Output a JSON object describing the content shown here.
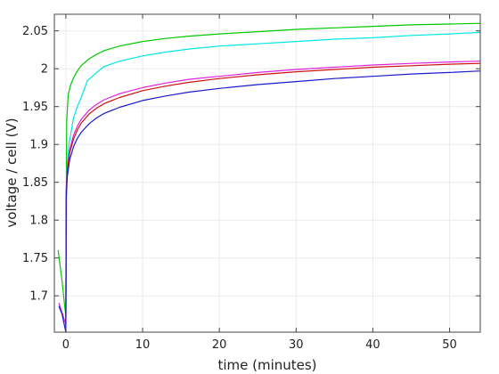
{
  "chart_data": {
    "type": "line",
    "title": "",
    "xlabel": "time (minutes)",
    "ylabel": "voltage / cell (V)",
    "xlim": [
      -1.5,
      54
    ],
    "ylim": [
      1.652,
      2.072
    ],
    "grid": true,
    "x_ticks": [
      0,
      10,
      20,
      30,
      40,
      50
    ],
    "x_tick_labels": [
      "0",
      "10",
      "20",
      "30",
      "40",
      "50"
    ],
    "y_ticks": [
      1.7,
      1.75,
      1.8,
      1.85,
      1.9,
      1.95,
      2.0,
      2.05
    ],
    "y_tick_labels": [
      "1.7",
      "1.75",
      "1.8",
      "1.85",
      "1.9",
      "1.95",
      "2",
      "2.05"
    ],
    "series": [
      {
        "color": "#00c800",
        "x": [
          -1.0,
          -0.5,
          0.0,
          0.1,
          0.3,
          0.6,
          1,
          1.5,
          2,
          3,
          4,
          5,
          7,
          10,
          13,
          16,
          20,
          25,
          30,
          35,
          40,
          45,
          50,
          54
        ],
        "y": [
          1.76,
          1.72,
          1.672,
          1.93,
          1.965,
          1.978,
          1.988,
          1.997,
          2.004,
          2.013,
          2.019,
          2.024,
          2.03,
          2.036,
          2.04,
          2.043,
          2.046,
          2.049,
          2.052,
          2.054,
          2.056,
          2.058,
          2.059,
          2.06
        ]
      },
      {
        "color": "#00e5e5",
        "x": [
          0.0,
          0.1,
          0.4,
          1,
          1.5,
          2,
          2.8,
          4,
          5,
          7,
          10,
          13,
          16,
          20,
          25,
          30,
          35,
          40,
          45,
          50,
          54
        ],
        "y": [
          1.668,
          1.86,
          1.9,
          1.935,
          1.95,
          1.962,
          1.984,
          1.995,
          2.003,
          2.01,
          2.017,
          2.022,
          2.026,
          2.03,
          2.033,
          2.036,
          2.039,
          2.041,
          2.044,
          2.046,
          2.048
        ]
      },
      {
        "color": "#dd22dd",
        "x": [
          -0.9,
          -0.5,
          0.0,
          0.05,
          0.2,
          0.5,
          1,
          1.5,
          2,
          3,
          4,
          5,
          7,
          10,
          13,
          16,
          20,
          25,
          30,
          35,
          40,
          45,
          50,
          54
        ],
        "y": [
          1.69,
          1.678,
          1.662,
          1.84,
          1.87,
          1.893,
          1.912,
          1.924,
          1.933,
          1.945,
          1.953,
          1.959,
          1.967,
          1.975,
          1.981,
          1.986,
          1.99,
          1.995,
          1.999,
          2.002,
          2.005,
          2.007,
          2.009,
          2.01
        ]
      },
      {
        "color": "#cc1111",
        "x": [
          0.0,
          0.05,
          0.2,
          0.5,
          1,
          1.5,
          2,
          3,
          4,
          5,
          7,
          10,
          13,
          16,
          20,
          25,
          30,
          35,
          40,
          45,
          50,
          54
        ],
        "y": [
          1.66,
          1.835,
          1.866,
          1.889,
          1.907,
          1.919,
          1.928,
          1.94,
          1.948,
          1.954,
          1.962,
          1.971,
          1.977,
          1.982,
          1.987,
          1.992,
          1.996,
          1.999,
          2.002,
          2.004,
          2.006,
          2.007
        ]
      },
      {
        "color": "#1a1acc",
        "x": [
          -0.9,
          -0.5,
          0.0,
          0.05,
          0.2,
          0.5,
          1,
          1.5,
          2,
          3,
          4,
          5,
          7,
          10,
          13,
          16,
          20,
          25,
          30,
          35,
          40,
          45,
          50,
          54
        ],
        "y": [
          1.686,
          1.676,
          1.652,
          1.83,
          1.858,
          1.88,
          1.897,
          1.908,
          1.916,
          1.927,
          1.935,
          1.941,
          1.949,
          1.958,
          1.964,
          1.969,
          1.974,
          1.979,
          1.983,
          1.987,
          1.99,
          1.993,
          1.995,
          1.997
        ]
      }
    ]
  }
}
